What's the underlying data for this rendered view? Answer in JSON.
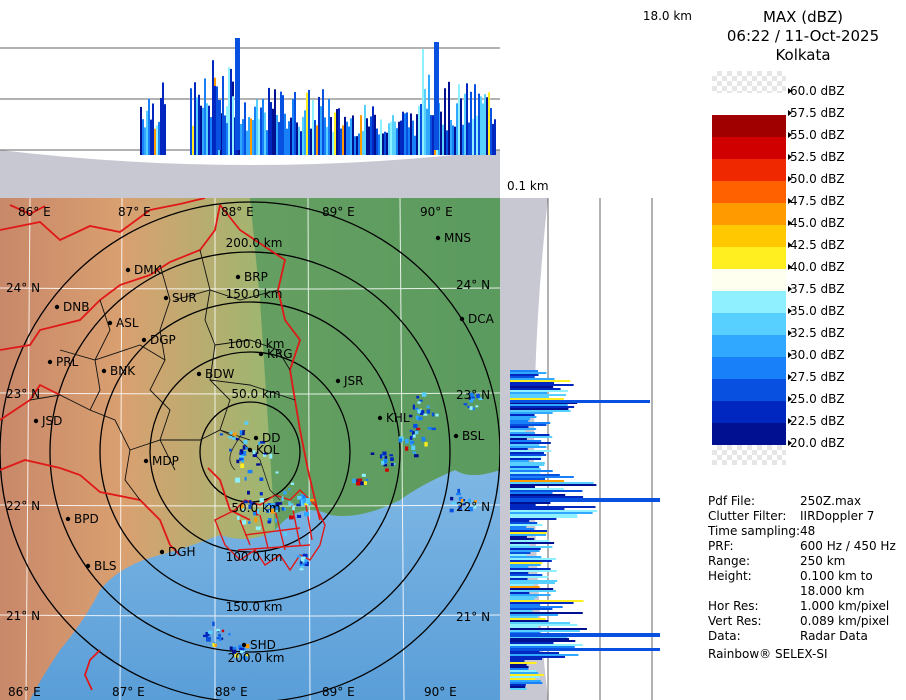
{
  "product": {
    "title": "MAX (dBZ)",
    "datetime": "06:22 / 11-Oct-2025",
    "station": "Kolkata"
  },
  "profiles": {
    "top_label": "18.0 km",
    "bottom_label": "0.1 km"
  },
  "legend": [
    {
      "label": "60.0 dBZ",
      "color": "checker"
    },
    {
      "label": "57.5 dBZ",
      "color": "#ffffff"
    },
    {
      "label": "55.0 dBZ",
      "color": "#a00000"
    },
    {
      "label": "52.5 dBZ",
      "color": "#d00000"
    },
    {
      "label": "50.0 dBZ",
      "color": "#f02800"
    },
    {
      "label": "47.5 dBZ",
      "color": "#ff6000"
    },
    {
      "label": "45.0 dBZ",
      "color": "#ff9a00"
    },
    {
      "label": "42.5 dBZ",
      "color": "#ffc800"
    },
    {
      "label": "40.0 dBZ",
      "color": "#ffee20"
    },
    {
      "label": "37.5 dBZ",
      "color": "#fffff0"
    },
    {
      "label": "35.0 dBZ",
      "color": "#8ff0ff"
    },
    {
      "label": "32.5 dBZ",
      "color": "#58d0ff"
    },
    {
      "label": "30.0 dBZ",
      "color": "#30a8ff"
    },
    {
      "label": "27.5 dBZ",
      "color": "#1880f8"
    },
    {
      "label": "25.0 dBZ",
      "color": "#0850e0"
    },
    {
      "label": "22.5 dBZ",
      "color": "#0028c0"
    },
    {
      "label": "20.0 dBZ",
      "color": "#001090"
    }
  ],
  "info": [
    {
      "key": "Pdf File:",
      "value": "250Z.max"
    },
    {
      "key": "Clutter Filter:",
      "value": "IIRDoppler 7"
    },
    {
      "key": "Time sampling:",
      "value": "48"
    },
    {
      "key": "PRF:",
      "value": "600 Hz / 450 Hz"
    },
    {
      "key": "Range:",
      "value": "250 km"
    },
    {
      "key": "Height:",
      "value": "0.100 km to\n18.000 km"
    },
    {
      "key": "Hor Res:",
      "value": "1.000 km/pixel"
    },
    {
      "key": "Vert Res:",
      "value": "0.089 km/pixel"
    },
    {
      "key": "Data:",
      "value": "Radar Data"
    }
  ],
  "credit": "Rainbow® SELEX-SI",
  "map": {
    "range_rings": [
      "50.0 km",
      "100.0 km",
      "150.0 km",
      "200.0 km"
    ],
    "range_rings_south": [
      "50.0 km",
      "100.0 km",
      "150.0 km",
      "200.0 km"
    ],
    "lon_labels": [
      "86° E",
      "87° E",
      "88° E",
      "89° E",
      "90° E"
    ],
    "lat_labels_west": [
      "24° N",
      "23° N",
      "22° N",
      "21° N"
    ],
    "lat_labels_east": [
      "24° N",
      "23° N",
      "22° N",
      "21° N"
    ],
    "stations": [
      "MNS",
      "DMK",
      "BRP",
      "DNB",
      "SUR",
      "ASL",
      "DGP",
      "DCA",
      "KRG",
      "PRL",
      "BNK",
      "BDW",
      "JSR",
      "KHL",
      "JSD",
      "DD",
      "KOL",
      "BSL",
      "MDP",
      "BPD",
      "DGH",
      "BLS",
      "SHD"
    ]
  },
  "colors": {
    "land": "#5e9e62",
    "sea": "#8ec4ea",
    "terrain": "#d99a6a",
    "boundary": "#e01818",
    "district": "#111111",
    "profile_bg": "#d0d0d8",
    "profile_sky": "#ffffff"
  }
}
